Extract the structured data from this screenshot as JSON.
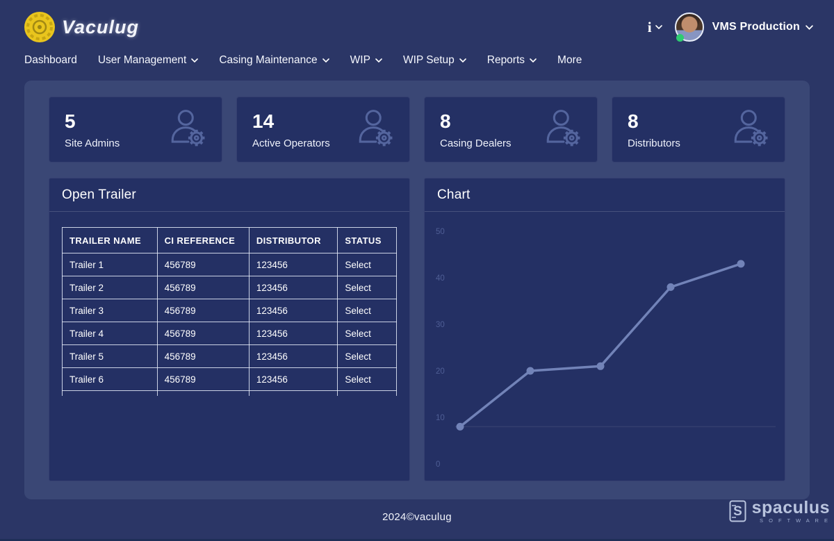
{
  "brand": {
    "name": "Vaculug"
  },
  "header": {
    "info_label": "i",
    "account_name": "VMS Production",
    "avatar_status": "online"
  },
  "nav": {
    "items": [
      {
        "label": "Dashboard",
        "dropdown": false
      },
      {
        "label": "User Management",
        "dropdown": true
      },
      {
        "label": "Casing Maintenance",
        "dropdown": true
      },
      {
        "label": "WIP",
        "dropdown": true
      },
      {
        "label": "WIP Setup",
        "dropdown": true
      },
      {
        "label": "Reports",
        "dropdown": true
      },
      {
        "label": "More",
        "dropdown": false
      }
    ]
  },
  "stats": [
    {
      "value": "5",
      "label": "Site Admins",
      "icon": "user-gear-icon"
    },
    {
      "value": "14",
      "label": "Active Operators",
      "icon": "user-gear-icon"
    },
    {
      "value": "8",
      "label": "Casing Dealers",
      "icon": "user-gear-icon"
    },
    {
      "value": "8",
      "label": "Distributors",
      "icon": "user-gear-icon"
    }
  ],
  "open_trailer": {
    "title": "Open Trailer",
    "table": {
      "columns": [
        "TRAILER NAME",
        "CI REFERENCE",
        "DISTRIBUTOR",
        "STATUS"
      ],
      "rows": [
        [
          "Trailer 1",
          "456789",
          "123456",
          "Select"
        ],
        [
          "Trailer 2",
          "456789",
          "123456",
          "Select"
        ],
        [
          "Trailer 3",
          "456789",
          "123456",
          "Select"
        ],
        [
          "Trailer 4",
          "456789",
          "123456",
          "Select"
        ],
        [
          "Trailer 5",
          "456789",
          "123456",
          "Select"
        ],
        [
          "Trailer 6",
          "456789",
          "123456",
          "Select"
        ]
      ],
      "partial_row_visible": true
    }
  },
  "chart_panel": {
    "title": "Chart"
  },
  "chart_data": {
    "type": "line",
    "x": [
      1,
      2,
      3,
      4,
      5
    ],
    "values": [
      8,
      20,
      21,
      38,
      43
    ],
    "title": "Chart",
    "xlabel": "",
    "ylabel": "",
    "ylim": [
      0,
      50
    ],
    "yticks": [
      0,
      10,
      20,
      30,
      40,
      50
    ],
    "x_tick_labels_visible": false,
    "legend": "none",
    "grid": "single faint line at first point level",
    "line_color": "#7283b8",
    "point_color": "#7283b8",
    "tick_label_color": "#4f5e95"
  },
  "footer": {
    "copyright": "2024©vaculug",
    "vendor_name": "spaculus",
    "vendor_tagline": "S O F T W A R E"
  },
  "colors": {
    "page_bg": "#2b3666",
    "surface_bg": "#3a4775",
    "card_bg": "#243064",
    "accent_yellow": "#e9c51d",
    "online_green": "#2ecc71",
    "table_border": "#e9eefb"
  }
}
